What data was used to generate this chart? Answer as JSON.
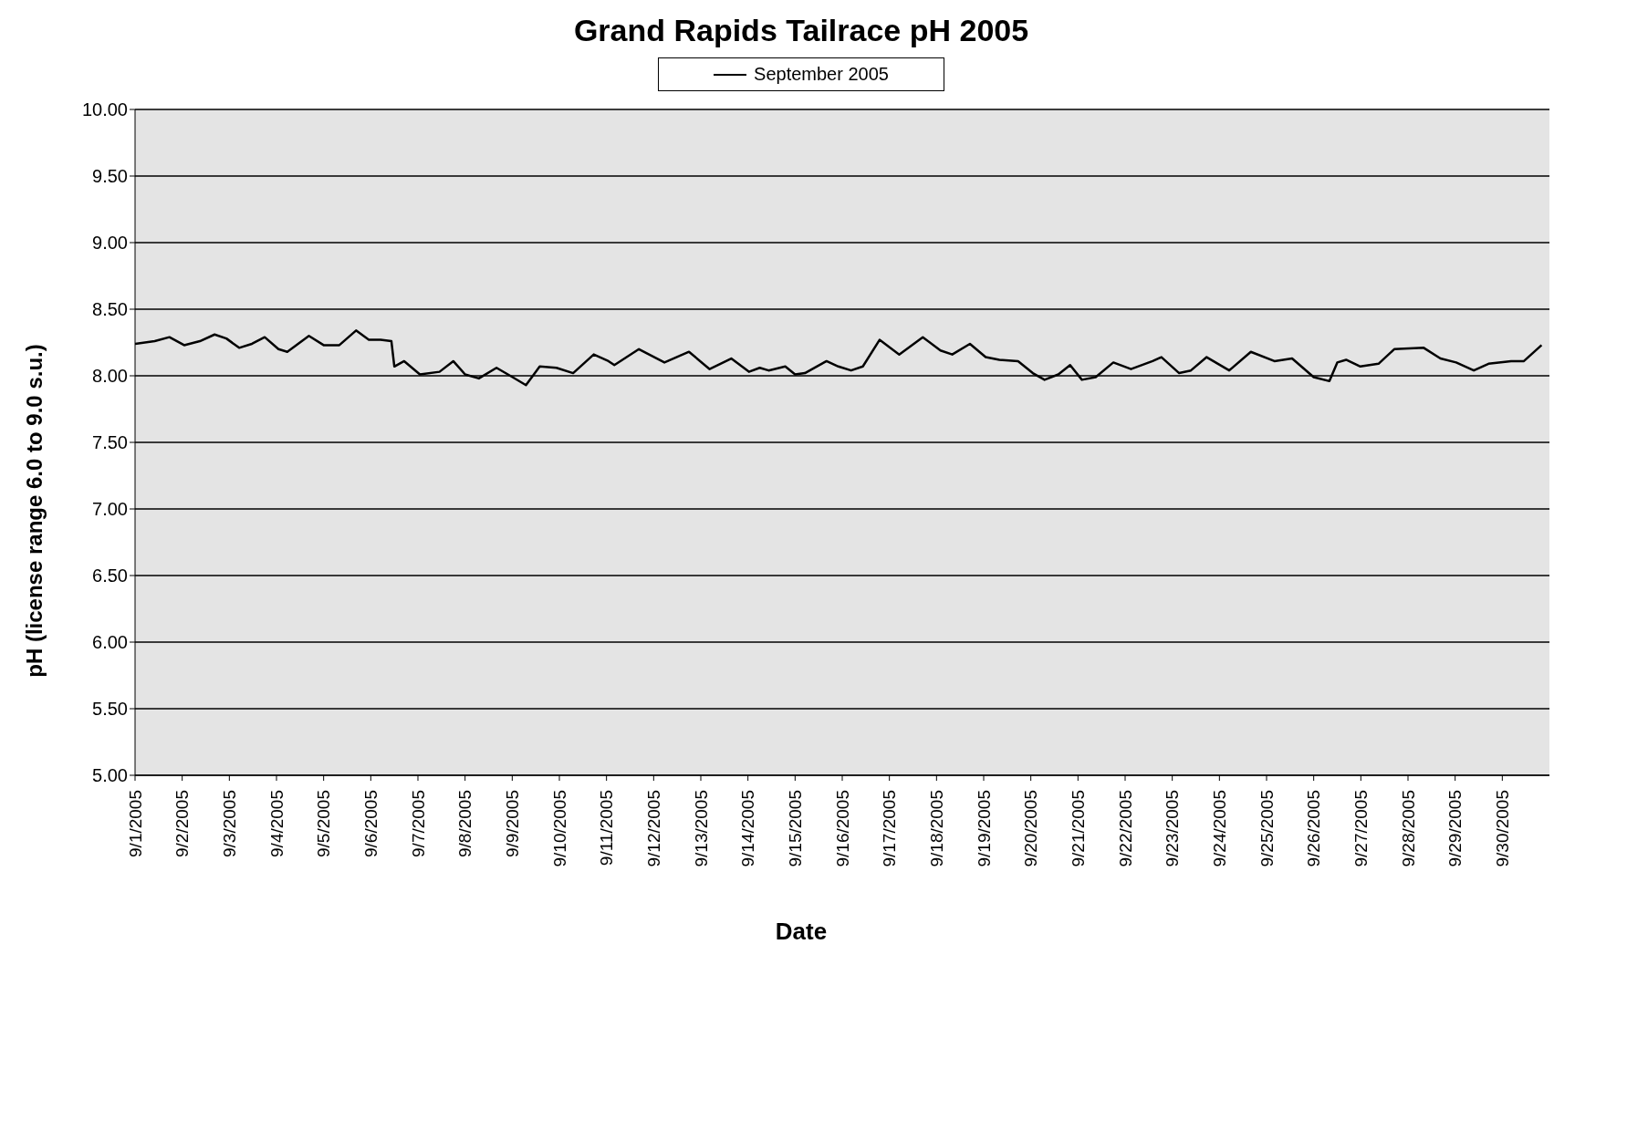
{
  "chart_data": {
    "type": "line",
    "title": "Grand Rapids Tailrace pH 2005",
    "xlabel": "Date",
    "ylabel": "pH  (license range 6.0 to 9.0 s.u.)",
    "x": [
      "2005-09-01T00:00",
      "2005-09-01T10:00",
      "2005-09-01T17:30",
      "2005-09-02T01:00",
      "2005-09-02T09:00",
      "2005-09-02T16:30",
      "2005-09-02T22:30",
      "2005-09-03T05:00",
      "2005-09-03T11:30",
      "2005-09-03T18:00",
      "2005-09-04T01:00",
      "2005-09-04T05:30",
      "2005-09-04T16:30",
      "2005-09-05T00:00",
      "2005-09-05T08:00",
      "2005-09-05T16:30",
      "2005-09-05T23:00",
      "2005-09-06T05:00",
      "2005-09-06T10:30",
      "2005-09-06T12:00",
      "2005-09-06T17:00",
      "2005-09-07T01:00",
      "2005-09-07T11:00",
      "2005-09-07T18:00",
      "2005-09-08T00:00",
      "2005-09-08T07:00",
      "2005-09-08T16:00",
      "2005-09-08T23:00",
      "2005-09-09T07:00",
      "2005-09-09T14:00",
      "2005-09-09T22:30",
      "2005-09-10T07:00",
      "2005-09-10T17:30",
      "2005-09-11T01:00",
      "2005-09-11T04:00",
      "2005-09-11T16:30",
      "2005-09-12T05:30",
      "2005-09-12T18:00",
      "2005-09-13T04:30",
      "2005-09-13T15:30",
      "2005-09-14T00:30",
      "2005-09-14T06:00",
      "2005-09-14T10:30",
      "2005-09-14T19:00",
      "2005-09-15T00:00",
      "2005-09-15T05:00",
      "2005-09-15T16:00",
      "2005-09-15T22:00",
      "2005-09-16T04:30",
      "2005-09-16T10:30",
      "2005-09-16T19:00",
      "2005-09-17T05:00",
      "2005-09-17T17:00",
      "2005-09-18T02:00",
      "2005-09-18T08:00",
      "2005-09-18T17:00",
      "2005-09-19T01:00",
      "2005-09-19T08:00",
      "2005-09-19T17:30",
      "2005-09-20T01:00",
      "2005-09-20T07:00",
      "2005-09-20T14:00",
      "2005-09-20T20:00",
      "2005-09-21T02:00",
      "2005-09-21T09:00",
      "2005-09-21T18:00",
      "2005-09-22T03:00",
      "2005-09-22T14:00",
      "2005-09-22T18:30",
      "2005-09-23T03:30",
      "2005-09-23T09:30",
      "2005-09-23T17:30",
      "2005-09-24T05:00",
      "2005-09-24T16:00",
      "2005-09-25T04:00",
      "2005-09-25T13:00",
      "2005-09-26T00:00",
      "2005-09-26T08:00",
      "2005-09-26T12:00",
      "2005-09-26T16:30",
      "2005-09-26T23:45",
      "2005-09-27T09:00",
      "2005-09-27T17:00",
      "2005-09-28T08:00",
      "2005-09-28T16:30",
      "2005-09-29T00:30",
      "2005-09-29T09:30",
      "2005-09-29T17:00",
      "2005-09-30T04:30",
      "2005-09-30T11:00",
      "2005-09-30T20:00"
    ],
    "series": [
      {
        "name": "September 2005",
        "color": "#000000",
        "values": [
          8.24,
          8.26,
          8.29,
          8.23,
          8.26,
          8.31,
          8.28,
          8.21,
          8.24,
          8.29,
          8.2,
          8.18,
          8.3,
          8.23,
          8.23,
          8.34,
          8.27,
          8.27,
          8.26,
          8.07,
          8.11,
          8.01,
          8.03,
          8.11,
          8.01,
          7.98,
          8.06,
          8.0,
          7.93,
          8.07,
          8.06,
          8.02,
          8.16,
          8.11,
          8.08,
          8.2,
          8.1,
          8.18,
          8.05,
          8.13,
          8.03,
          8.06,
          8.04,
          8.07,
          8.01,
          8.02,
          8.11,
          8.07,
          8.04,
          8.07,
          8.27,
          8.16,
          8.29,
          8.19,
          8.16,
          8.24,
          8.14,
          8.12,
          8.11,
          8.02,
          7.97,
          8.01,
          8.08,
          7.97,
          7.99,
          8.1,
          8.05,
          8.11,
          8.14,
          8.02,
          8.04,
          8.14,
          8.04,
          8.18,
          8.11,
          8.13,
          7.99,
          7.96,
          8.1,
          8.12,
          8.07,
          8.09,
          8.2,
          8.21,
          8.13,
          8.1,
          8.04,
          8.09,
          8.11,
          8.11,
          8.23
        ]
      }
    ],
    "xlim": [
      "2005-09-01T00:00",
      "2005-10-01T00:00"
    ],
    "xticks": [
      {
        "value": "2005-09-01",
        "label": "9/1/2005"
      },
      {
        "value": "2005-09-02",
        "label": "9/2/2005"
      },
      {
        "value": "2005-09-03",
        "label": "9/3/2005"
      },
      {
        "value": "2005-09-04",
        "label": "9/4/2005"
      },
      {
        "value": "2005-09-05",
        "label": "9/5/2005"
      },
      {
        "value": "2005-09-06",
        "label": "9/6/2005"
      },
      {
        "value": "2005-09-07",
        "label": "9/7/2005"
      },
      {
        "value": "2005-09-08",
        "label": "9/8/2005"
      },
      {
        "value": "2005-09-09",
        "label": "9/9/2005"
      },
      {
        "value": "2005-09-10",
        "label": "9/10/2005"
      },
      {
        "value": "2005-09-11",
        "label": "9/11/2005"
      },
      {
        "value": "2005-09-12",
        "label": "9/12/2005"
      },
      {
        "value": "2005-09-13",
        "label": "9/13/2005"
      },
      {
        "value": "2005-09-14",
        "label": "9/14/2005"
      },
      {
        "value": "2005-09-15",
        "label": "9/15/2005"
      },
      {
        "value": "2005-09-16",
        "label": "9/16/2005"
      },
      {
        "value": "2005-09-17",
        "label": "9/17/2005"
      },
      {
        "value": "2005-09-18",
        "label": "9/18/2005"
      },
      {
        "value": "2005-09-19",
        "label": "9/19/2005"
      },
      {
        "value": "2005-09-20",
        "label": "9/20/2005"
      },
      {
        "value": "2005-09-21",
        "label": "9/21/2005"
      },
      {
        "value": "2005-09-22",
        "label": "9/22/2005"
      },
      {
        "value": "2005-09-23",
        "label": "9/23/2005"
      },
      {
        "value": "2005-09-24",
        "label": "9/24/2005"
      },
      {
        "value": "2005-09-25",
        "label": "9/25/2005"
      },
      {
        "value": "2005-09-26",
        "label": "9/26/2005"
      },
      {
        "value": "2005-09-27",
        "label": "9/27/2005"
      },
      {
        "value": "2005-09-28",
        "label": "9/28/2005"
      },
      {
        "value": "2005-09-29",
        "label": "9/29/2005"
      },
      {
        "value": "2005-09-30",
        "label": "9/30/2005"
      }
    ],
    "ylim": [
      5,
      10
    ],
    "yticks": [
      {
        "value": 5,
        "label": "5.00"
      },
      {
        "value": 5.5,
        "label": "5.50"
      },
      {
        "value": 6,
        "label": "6.00"
      },
      {
        "value": 6.5,
        "label": "6.50"
      },
      {
        "value": 7,
        "label": "7.00"
      },
      {
        "value": 7.5,
        "label": "7.50"
      },
      {
        "value": 8,
        "label": "8.00"
      },
      {
        "value": 8.5,
        "label": "8.50"
      },
      {
        "value": 9,
        "label": "9.00"
      },
      {
        "value": 9.5,
        "label": "9.50"
      },
      {
        "value": 10,
        "label": "10.00"
      }
    ],
    "grid": "y",
    "legend": "top",
    "marker": "none",
    "line_style": "solid"
  }
}
